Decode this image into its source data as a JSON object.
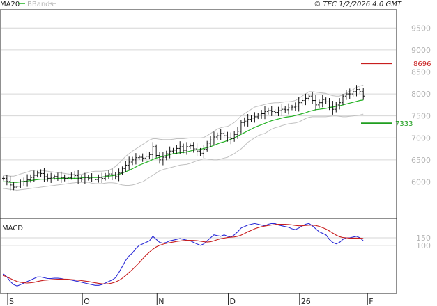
{
  "header": {
    "legend_ma": "MA20",
    "legend_bb": "BBands",
    "copyright": "© TEC 1/2/2026 4:0 GMT"
  },
  "colors": {
    "ma": "#21b221",
    "bbands": "#c0c0c0",
    "bars": "#111111",
    "resistance": "#c81e1e",
    "support": "#1f9e1f",
    "macd": "#2a2ad6",
    "signal": "#c81e1e",
    "grid": "#d6d6d6"
  },
  "chart_data": [
    {
      "type": "ohlc",
      "name": "",
      "ylim": [
        5200,
        9900
      ],
      "yticks": [
        9500,
        9000,
        8500,
        8000,
        7500,
        7000,
        6500,
        6000
      ],
      "ytick_labels": [
        "9500",
        "9000",
        "8500",
        "8000",
        "7500",
        "7000",
        "6500",
        "6000"
      ],
      "xticks": [
        {
          "label": "S",
          "index": 0
        },
        {
          "label": "O",
          "index": 22
        },
        {
          "label": "N",
          "index": 44
        },
        {
          "label": "D",
          "index": 65
        },
        {
          "label": "26",
          "index": 86
        },
        {
          "label": "F",
          "index": 106
        }
      ],
      "levels": [
        {
          "label": "8696",
          "value": 8696,
          "kind": "resistance"
        },
        {
          "label": "7333",
          "value": 7333,
          "kind": "support"
        }
      ],
      "closes": [
        6080,
        6010,
        5930,
        5880,
        5900,
        6000,
        6010,
        6050,
        6100,
        6150,
        6200,
        6190,
        6120,
        6080,
        6100,
        6120,
        6110,
        6100,
        6080,
        6100,
        6160,
        6140,
        6080,
        6060,
        6100,
        6080,
        6110,
        6050,
        6100,
        6080,
        6150,
        6180,
        6160,
        6120,
        6200,
        6300,
        6380,
        6450,
        6500,
        6550,
        6560,
        6540,
        6580,
        6620,
        6800,
        6600,
        6500,
        6560,
        6640,
        6700,
        6720,
        6760,
        6800,
        6720,
        6800,
        6820,
        6750,
        6700,
        6650,
        6740,
        6880,
        6950,
        7020,
        7050,
        7100,
        7050,
        7000,
        6980,
        7080,
        7150,
        7350,
        7380,
        7420,
        7450,
        7480,
        7520,
        7550,
        7600,
        7620,
        7600,
        7580,
        7620,
        7650,
        7640,
        7680,
        7700,
        7720,
        7800,
        7850,
        7900,
        7950,
        7850,
        7750,
        7800,
        7870,
        7820,
        7720,
        7650,
        7750,
        7800,
        7950,
        8000,
        8000,
        8050,
        8100,
        8050,
        7950
      ],
      "ma20": [
        6000,
        6000,
        5990,
        5990,
        5990,
        6000,
        6010,
        6020,
        6030,
        6040,
        6050,
        6060,
        6060,
        6060,
        6070,
        6070,
        6080,
        6080,
        6080,
        6080,
        6080,
        6080,
        6080,
        6090,
        6100,
        6100,
        6100,
        6100,
        6100,
        6110,
        6120,
        6130,
        6140,
        6150,
        6170,
        6200,
        6230,
        6260,
        6300,
        6340,
        6380,
        6410,
        6440,
        6470,
        6510,
        6540,
        6560,
        6580,
        6600,
        6620,
        6640,
        6650,
        6660,
        6670,
        6680,
        6700,
        6720,
        6730,
        6740,
        6760,
        6780,
        6800,
        6830,
        6860,
        6890,
        6910,
        6940,
        6970,
        7000,
        7040,
        7080,
        7120,
        7160,
        7200,
        7240,
        7270,
        7300,
        7330,
        7360,
        7390,
        7410,
        7430,
        7450,
        7470,
        7480,
        7490,
        7510,
        7530,
        7550,
        7570,
        7600,
        7620,
        7640,
        7650,
        7660,
        7670,
        7690,
        7700,
        7720,
        7730,
        7750,
        7770,
        7790,
        7810,
        7830,
        7850,
        7860
      ],
      "bb_upper": [
        6150,
        6140,
        6130,
        6130,
        6150,
        6180,
        6200,
        6220,
        6250,
        6260,
        6270,
        6260,
        6250,
        6240,
        6230,
        6220,
        6210,
        6200,
        6190,
        6180,
        6170,
        6160,
        6160,
        6170,
        6190,
        6210,
        6230,
        6240,
        6240,
        6240,
        6250,
        6260,
        6300,
        6350,
        6420,
        6500,
        6580,
        6640,
        6700,
        6750,
        6800,
        6850,
        6900,
        6950,
        6980,
        6980,
        6970,
        6960,
        6960,
        6960,
        6970,
        6980,
        6980,
        6980,
        6990,
        7000,
        7000,
        7000,
        7000,
        7010,
        7050,
        7100,
        7150,
        7200,
        7230,
        7250,
        7260,
        7300,
        7350,
        7420,
        7500,
        7550,
        7600,
        7650,
        7700,
        7720,
        7740,
        7760,
        7780,
        7790,
        7800,
        7800,
        7810,
        7820,
        7820,
        7830,
        7850,
        7900,
        7950,
        8000,
        8050,
        8050,
        8040,
        8030,
        8020,
        8010,
        7980,
        7960,
        7950,
        7950,
        7980,
        8020,
        8060,
        8100,
        8150,
        8180,
        8200
      ],
      "bb_lower": [
        5850,
        5840,
        5830,
        5820,
        5810,
        5820,
        5830,
        5840,
        5850,
        5860,
        5870,
        5880,
        5890,
        5900,
        5910,
        5920,
        5930,
        5940,
        5950,
        5960,
        5970,
        5980,
        5990,
        5990,
        5990,
        5990,
        5970,
        5960,
        5960,
        5960,
        5970,
        5980,
        5980,
        5970,
        5950,
        5930,
        5920,
        5920,
        5930,
        5950,
        5980,
        6000,
        6050,
        6100,
        6150,
        6200,
        6250,
        6280,
        6300,
        6320,
        6340,
        6360,
        6380,
        6390,
        6400,
        6420,
        6450,
        6480,
        6500,
        6530,
        6520,
        6510,
        6500,
        6500,
        6520,
        6540,
        6560,
        6600,
        6640,
        6700,
        6750,
        6820,
        6900,
        6950,
        7000,
        7050,
        7080,
        7100,
        7150,
        7200,
        7230,
        7250,
        7280,
        7300,
        7320,
        7330,
        7340,
        7360,
        7400,
        7440,
        7470,
        7480,
        7480,
        7480,
        7480,
        7480,
        7490,
        7500,
        7500,
        7490,
        7480,
        7480,
        7490,
        7500,
        7510,
        7520,
        7540
      ]
    },
    {
      "type": "line",
      "name": "MACD",
      "ylim": [
        -210,
        270
      ],
      "yticks": [
        150,
        100
      ],
      "ytick_labels": [
        "150",
        "100"
      ],
      "series": [
        {
          "name": "",
          "color_key": "macd",
          "values": [
            -90,
            -110,
            -140,
            -160,
            -170,
            -160,
            -150,
            -140,
            -130,
            -120,
            -110,
            -110,
            -115,
            -120,
            -120,
            -118,
            -118,
            -120,
            -125,
            -128,
            -130,
            -135,
            -140,
            -145,
            -150,
            -155,
            -160,
            -165,
            -165,
            -160,
            -150,
            -140,
            -130,
            -115,
            -80,
            -40,
            0,
            30,
            50,
            80,
            100,
            110,
            120,
            130,
            160,
            140,
            120,
            115,
            120,
            130,
            135,
            140,
            145,
            140,
            135,
            130,
            120,
            110,
            100,
            110,
            130,
            150,
            170,
            165,
            160,
            170,
            160,
            155,
            170,
            190,
            215,
            225,
            235,
            240,
            245,
            240,
            235,
            230,
            240,
            245,
            245,
            235,
            230,
            225,
            220,
            210,
            205,
            215,
            230,
            240,
            245,
            230,
            210,
            190,
            180,
            170,
            140,
            120,
            110,
            120,
            140,
            150,
            150,
            155,
            160,
            150,
            130
          ]
        },
        {
          "name": "",
          "color_key": "signal",
          "values": [
            -100,
            -110,
            -120,
            -130,
            -140,
            -145,
            -148,
            -150,
            -148,
            -145,
            -140,
            -135,
            -132,
            -130,
            -128,
            -126,
            -125,
            -124,
            -124,
            -125,
            -127,
            -129,
            -131,
            -134,
            -137,
            -140,
            -144,
            -148,
            -152,
            -155,
            -156,
            -154,
            -150,
            -143,
            -133,
            -118,
            -100,
            -80,
            -60,
            -38,
            -15,
            10,
            35,
            55,
            75,
            90,
            100,
            108,
            114,
            118,
            122,
            126,
            129,
            132,
            134,
            134,
            133,
            131,
            128,
            124,
            122,
            124,
            130,
            138,
            144,
            148,
            152,
            154,
            156,
            160,
            168,
            178,
            190,
            200,
            210,
            218,
            224,
            228,
            232,
            235,
            238,
            240,
            240,
            240,
            238,
            236,
            232,
            230,
            230,
            232,
            234,
            234,
            232,
            226,
            218,
            208,
            196,
            182,
            168,
            158,
            152,
            150,
            148,
            148,
            148,
            148,
            146
          ]
        }
      ]
    }
  ]
}
